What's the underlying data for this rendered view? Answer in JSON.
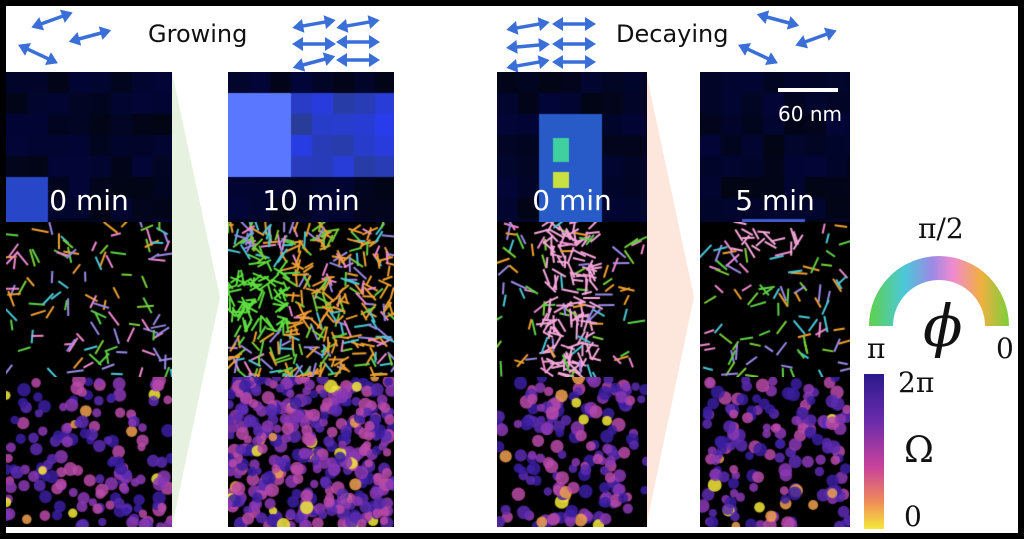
{
  "headings": {
    "growing": "Growing",
    "decaying": "Decaying"
  },
  "panels": [
    {
      "time": "0 min",
      "group": "growing"
    },
    {
      "time": "10 min",
      "group": "growing"
    },
    {
      "time": "0 min",
      "group": "decaying"
    },
    {
      "time": "5 min",
      "group": "decaying"
    }
  ],
  "scale_bar": {
    "label": "60 nm"
  },
  "phase_legend": {
    "symbol": "ϕ",
    "top": "π/2",
    "left": "π",
    "right": "0"
  },
  "omega_legend": {
    "symbol": "Ω",
    "max": "2π",
    "min": "0"
  },
  "colors": {
    "arrow": "#3a6fd8",
    "grow_funnel": "#e6f2df",
    "decay_funnel": "#fde7dd",
    "magma_low": "#f5e93a",
    "magma_mid": "#c9439b",
    "magma_high": "#2b1a8c"
  }
}
